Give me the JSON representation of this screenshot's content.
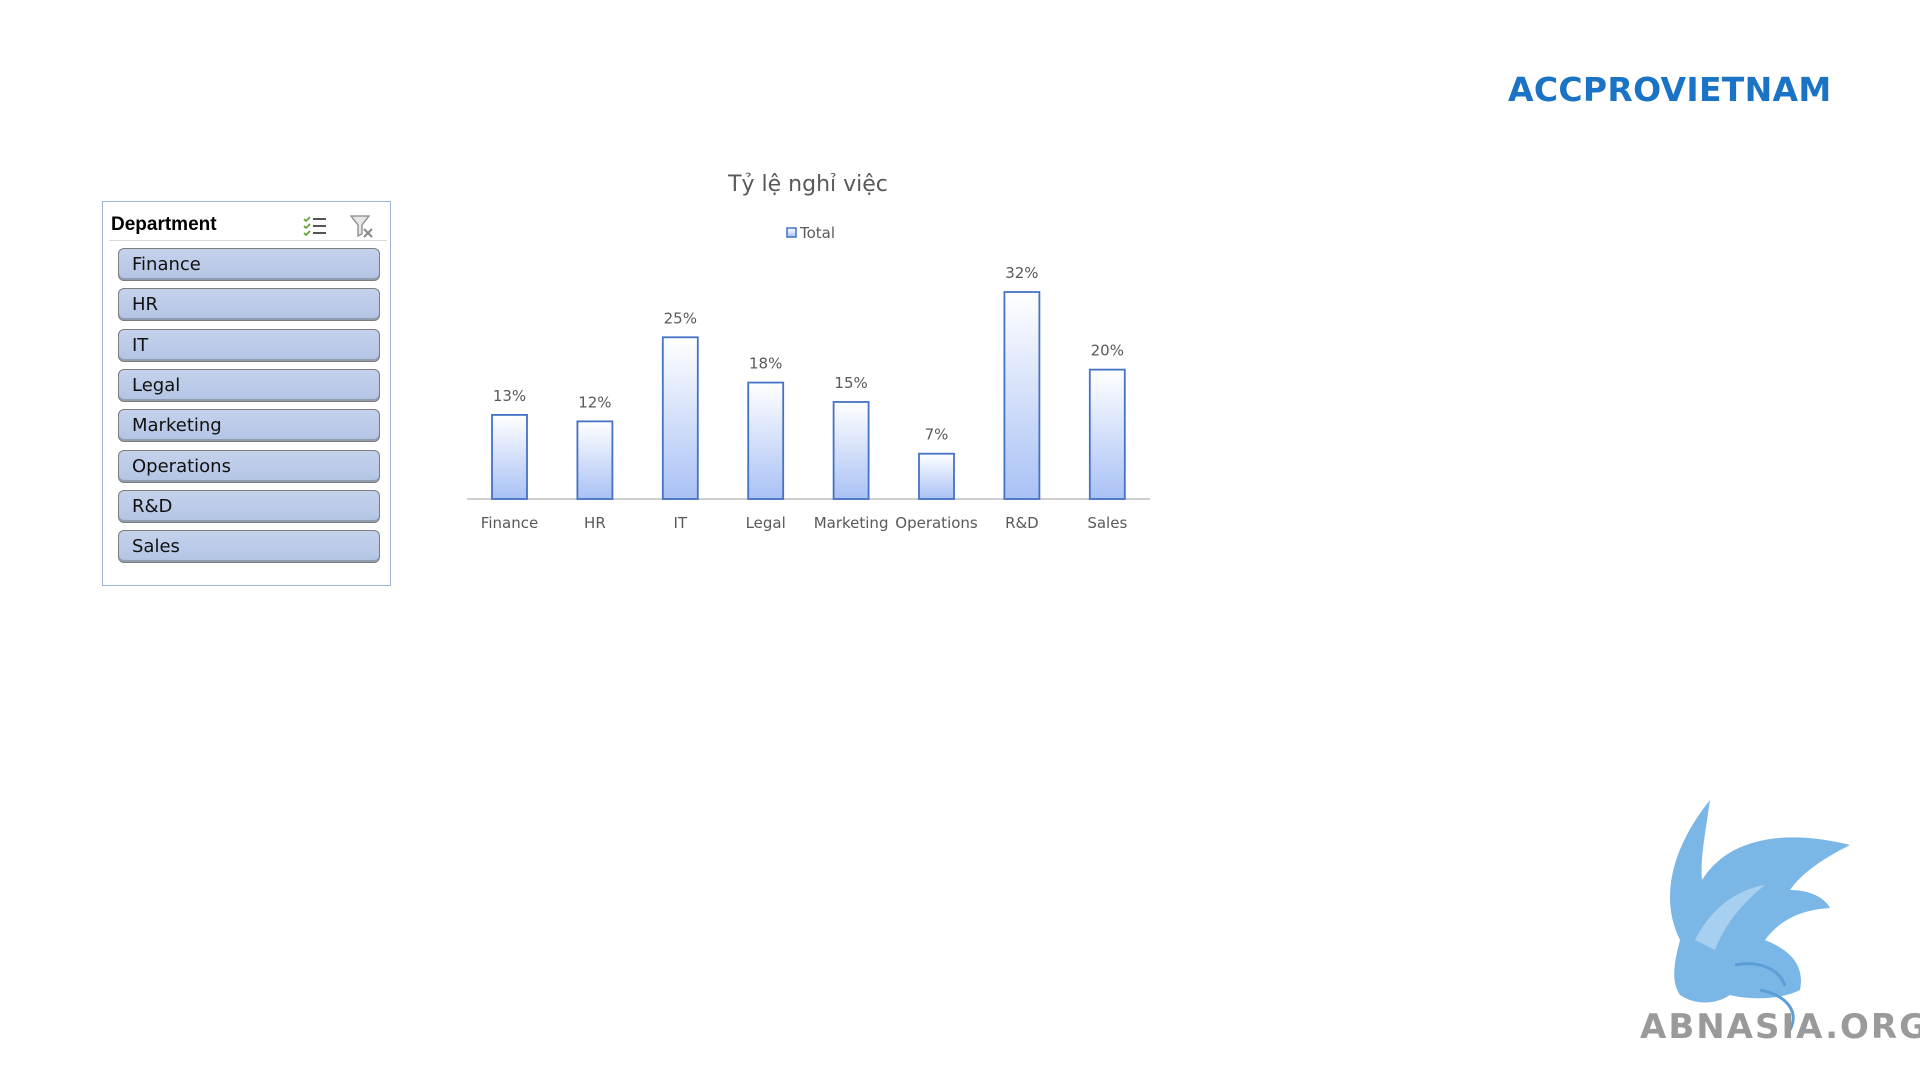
{
  "brand": "ACCPROVIETNAM",
  "slicer": {
    "title": "Department",
    "icons": [
      "multi-select-icon",
      "clear-filter-icon"
    ],
    "items": [
      "Finance",
      "HR",
      "IT",
      "Legal",
      "Marketing",
      "Operations",
      "R&D",
      "Sales"
    ]
  },
  "chart_data": {
    "type": "bar",
    "title": "Tỷ lệ nghỉ việc",
    "legend": [
      "Total"
    ],
    "legend_position": "top",
    "categories": [
      "Finance",
      "HR",
      "IT",
      "Legal",
      "Marketing",
      "Operations",
      "R&D",
      "Sales"
    ],
    "series": [
      {
        "name": "Total",
        "values": [
          13,
          12,
          25,
          18,
          15,
          7,
          32,
          20
        ]
      }
    ],
    "value_labels": [
      "13%",
      "12%",
      "25%",
      "18%",
      "15%",
      "7%",
      "32%",
      "20%"
    ],
    "grid": false,
    "colors": {
      "bar_stroke": "#4472c4",
      "bar_fill_top": "#ffffff",
      "bar_fill_bottom": "#a9c1f5"
    }
  },
  "watermark": {
    "text": "ABNASIA.ORG",
    "logo_icon": "griffin-logo-icon"
  }
}
